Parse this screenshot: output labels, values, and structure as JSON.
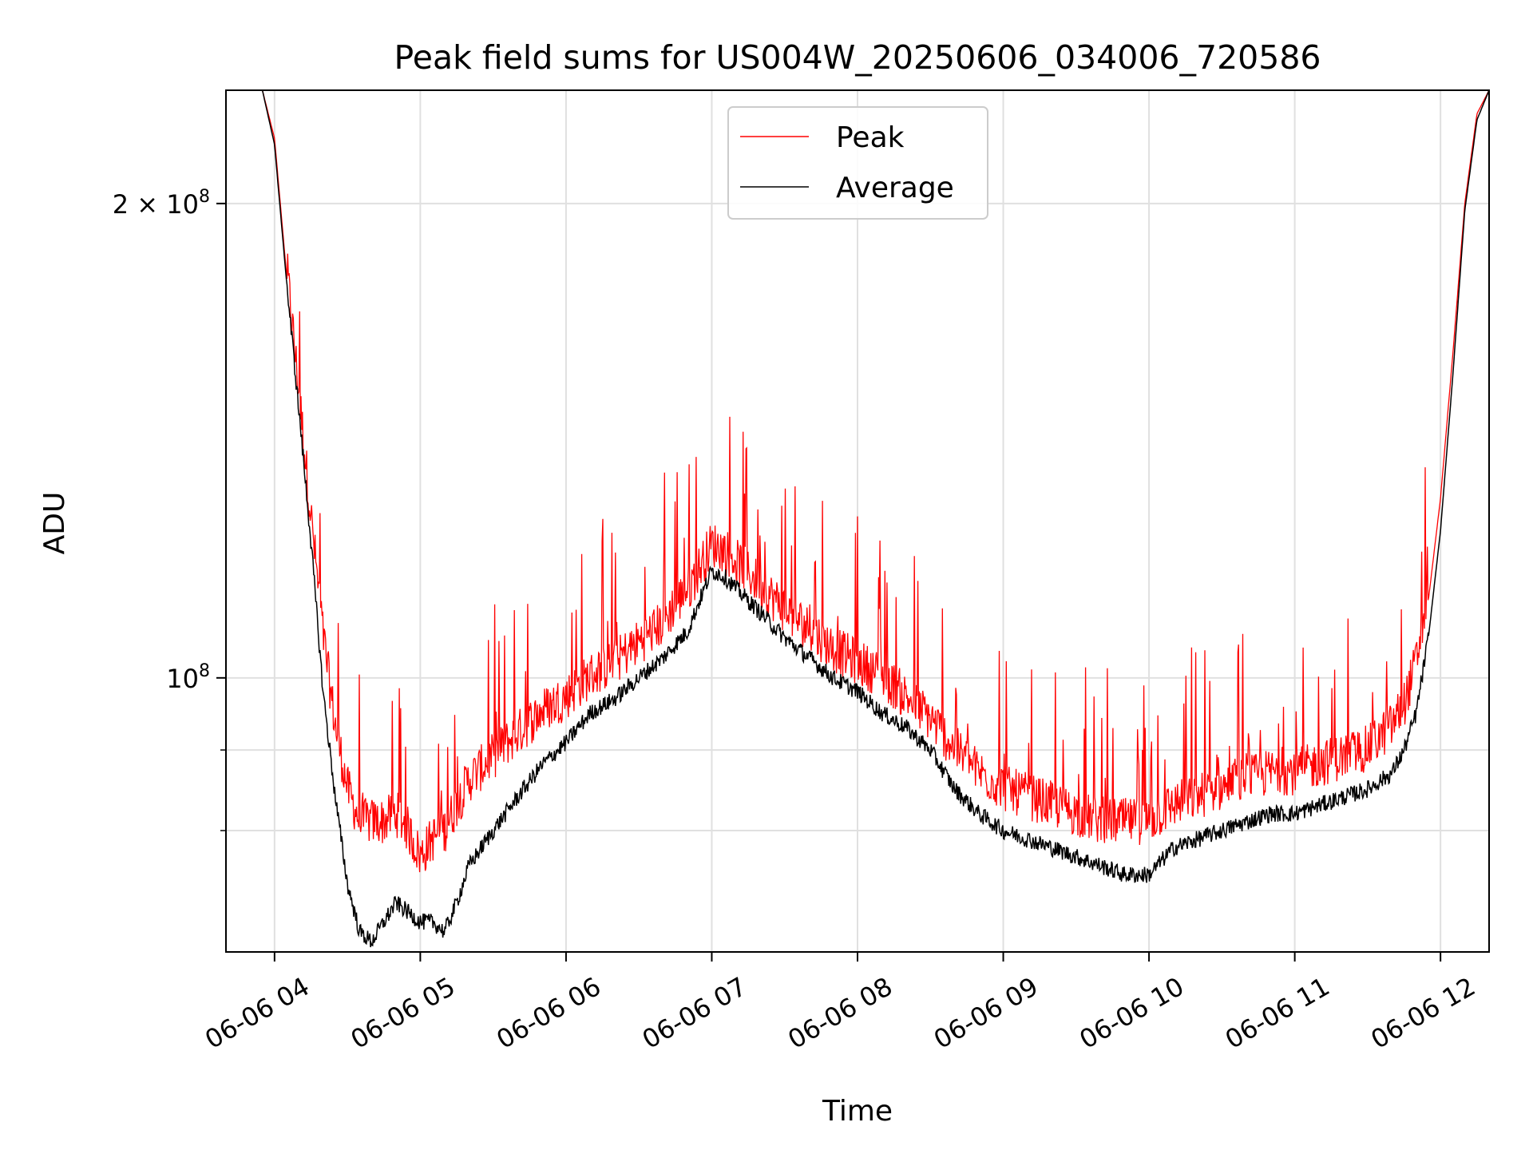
{
  "chart_data": {
    "type": "line",
    "title": "Peak field sums for US004W_20250606_034006_720586",
    "xlabel": "Time",
    "ylabel": "ADU",
    "x_scale": "time",
    "y_scale": "log",
    "xlim": [
      "2025-06-06 03:40",
      "2025-06-06 12:20"
    ],
    "ylim": [
      67000000,
      236000000
    ],
    "x_ticks": [
      "06-06 04",
      "06-06 05",
      "06-06 06",
      "06-06 07",
      "06-06 08",
      "06-06 09",
      "06-06 10",
      "06-06 11",
      "06-06 12"
    ],
    "x_tick_values": [
      "2025-06-06 04:00",
      "2025-06-06 05:00",
      "2025-06-06 06:00",
      "2025-06-06 07:00",
      "2025-06-06 08:00",
      "2025-06-06 09:00",
      "2025-06-06 10:00",
      "2025-06-06 11:00",
      "2025-06-06 12:00"
    ],
    "y_ticks": [
      {
        "value": 200000000,
        "label_base": "2 × 10",
        "label_exp": "8"
      },
      {
        "value": 100000000,
        "label_base": "10",
        "label_exp": "8"
      }
    ],
    "y_minor_gridlines": [
      90000000,
      80000000
    ],
    "grid": true,
    "legend": "top-center",
    "series": [
      {
        "name": "Peak",
        "color": "#ff0000",
        "x": [
          "03:40",
          "03:45",
          "03:50",
          "03:55",
          "04:00",
          "04:05",
          "04:10",
          "04:15",
          "04:20",
          "04:25",
          "04:30",
          "04:35",
          "04:40",
          "04:45",
          "04:50",
          "04:55",
          "05:00",
          "05:05",
          "05:10",
          "05:15",
          "05:20",
          "05:30",
          "05:40",
          "05:50",
          "06:00",
          "06:10",
          "06:20",
          "06:30",
          "06:40",
          "06:45",
          "06:50",
          "06:55",
          "07:00",
          "07:05",
          "07:10",
          "07:20",
          "07:30",
          "07:40",
          "07:50",
          "08:00",
          "08:10",
          "08:20",
          "08:30",
          "08:40",
          "08:50",
          "09:00",
          "09:10",
          "09:20",
          "09:30",
          "09:40",
          "09:50",
          "10:00",
          "10:10",
          "10:20",
          "10:30",
          "10:40",
          "10:50",
          "11:00",
          "11:10",
          "11:20",
          "11:30",
          "11:40",
          "11:45",
          "11:50",
          "11:55",
          "12:00",
          "12:05",
          "12:10",
          "12:15",
          "12:20"
        ],
        "y": [
          236000000,
          236000000,
          236000000,
          236000000,
          220000000,
          180000000,
          150000000,
          125000000,
          105000000,
          92000000,
          84000000,
          80000000,
          80000000,
          80000000,
          81000000,
          79000000,
          76000000,
          78000000,
          79000000,
          82000000,
          85000000,
          88000000,
          91000000,
          94000000,
          96000000,
          99000000,
          101000000,
          104000000,
          107000000,
          110000000,
          112000000,
          116000000,
          120000000,
          119000000,
          117000000,
          113000000,
          109000000,
          106000000,
          103000000,
          101000000,
          99000000,
          96000000,
          93000000,
          89000000,
          86000000,
          84000000,
          83000000,
          82000000,
          81000000,
          80000000,
          80000000,
          80000000,
          82000000,
          83000000,
          84000000,
          85000000,
          86000000,
          86000000,
          87000000,
          88000000,
          89000000,
          92000000,
          95000000,
          101000000,
          112000000,
          130000000,
          160000000,
          200000000,
          228000000,
          236000000
        ]
      },
      {
        "name": "Average",
        "color": "#000000",
        "x": [
          "03:40",
          "03:45",
          "03:50",
          "03:55",
          "04:00",
          "04:05",
          "04:10",
          "04:15",
          "04:20",
          "04:25",
          "04:30",
          "04:35",
          "04:40",
          "04:45",
          "04:50",
          "04:55",
          "05:00",
          "05:05",
          "05:10",
          "05:15",
          "05:20",
          "05:30",
          "05:40",
          "05:50",
          "06:00",
          "06:10",
          "06:20",
          "06:30",
          "06:40",
          "06:45",
          "06:50",
          "06:55",
          "07:00",
          "07:05",
          "07:10",
          "07:20",
          "07:30",
          "07:40",
          "07:50",
          "08:00",
          "08:10",
          "08:20",
          "08:30",
          "08:40",
          "08:50",
          "09:00",
          "09:10",
          "09:20",
          "09:30",
          "09:40",
          "09:50",
          "10:00",
          "10:10",
          "10:20",
          "10:30",
          "10:40",
          "10:50",
          "11:00",
          "11:10",
          "11:20",
          "11:30",
          "11:40",
          "11:45",
          "11:50",
          "11:55",
          "12:00",
          "12:05",
          "12:10",
          "12:15",
          "12:20"
        ],
        "y": [
          236000000,
          236000000,
          236000000,
          236000000,
          218000000,
          178000000,
          148000000,
          122000000,
          98000000,
          84000000,
          74000000,
          69000000,
          68000000,
          70000000,
          72000000,
          71000000,
          70000000,
          70000000,
          69000000,
          72000000,
          76000000,
          80000000,
          84000000,
          88000000,
          91000000,
          95000000,
          97000000,
          100000000,
          103000000,
          105000000,
          107000000,
          112000000,
          117000000,
          116000000,
          114000000,
          110000000,
          106000000,
          103000000,
          100000000,
          98000000,
          95000000,
          93000000,
          90000000,
          85000000,
          82000000,
          80000000,
          79000000,
          78000000,
          77000000,
          76000000,
          75000000,
          75000000,
          78000000,
          79000000,
          80000000,
          81000000,
          82000000,
          82000000,
          83000000,
          84000000,
          85000000,
          87000000,
          90000000,
          95000000,
          106000000,
          124000000,
          155000000,
          198000000,
          226000000,
          236000000
        ]
      }
    ]
  }
}
